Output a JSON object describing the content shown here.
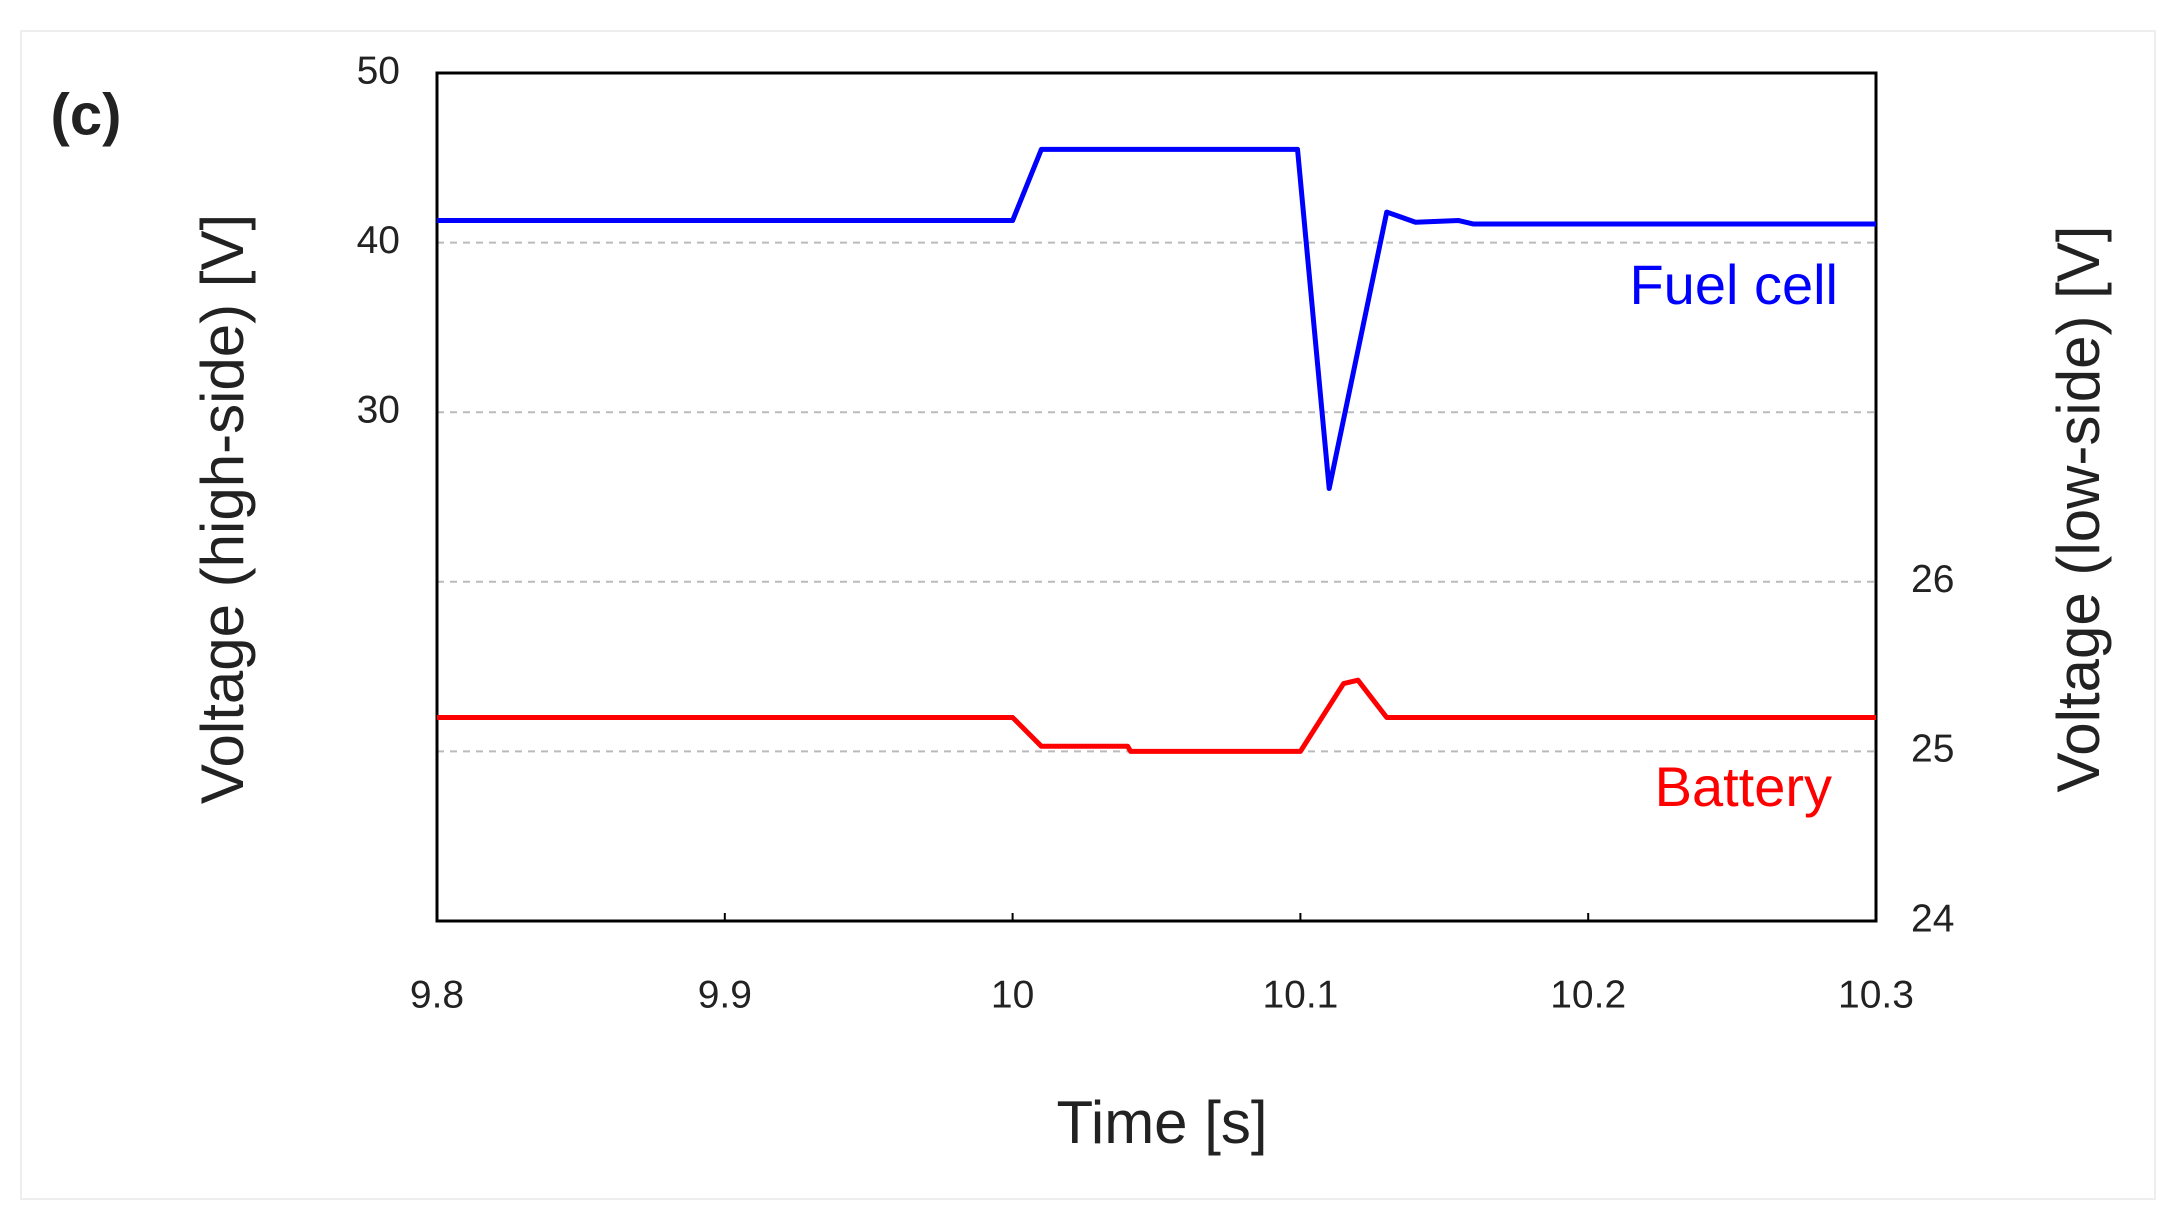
{
  "chart_data": {
    "type": "line",
    "panel_label": "(c)",
    "x_label": "Time [s]",
    "y_label": "Voltage (high-side) [V]",
    "y2_label": "Voltage (low-side) [V]",
    "xlim": [
      9.8,
      10.3
    ],
    "xticks": [
      9.8,
      9.9,
      10,
      10.1,
      10.2,
      10.3
    ],
    "ylim": [
      0,
      50
    ],
    "yticks": [
      30,
      40,
      50
    ],
    "y2lim": [
      24,
      29
    ],
    "y2ticks": [
      24,
      25,
      26
    ],
    "grid": true,
    "series": [
      {
        "name": "Fuel cell",
        "color": "#0000ff",
        "x": [
          9.8,
          10.0,
          10.01,
          10.099,
          10.11,
          10.13,
          10.14,
          10.155,
          10.16,
          10.3
        ],
        "values": [
          41.3,
          41.3,
          45.5,
          45.5,
          25.5,
          41.8,
          41.2,
          41.3,
          41.1,
          41.1
        ]
      },
      {
        "name": "Battery",
        "color": "#ff0000",
        "axis": "y2",
        "x": [
          9.8,
          10.0,
          10.01,
          10.04,
          10.041,
          10.1,
          10.115,
          10.12,
          10.13,
          10.3
        ],
        "values": [
          25.2,
          25.2,
          25.03,
          25.03,
          25.0,
          25.0,
          25.4,
          25.42,
          25.2,
          25.2
        ]
      }
    ]
  }
}
